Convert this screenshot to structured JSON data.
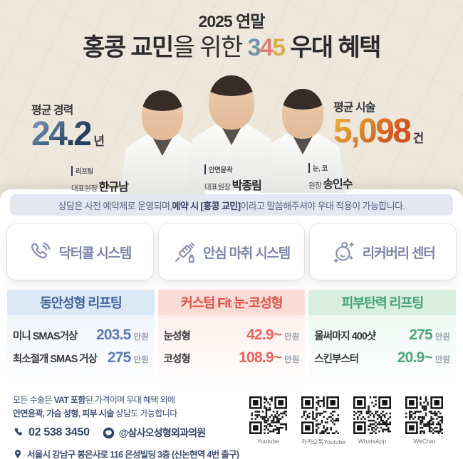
{
  "header": {
    "badge": "2025 연말",
    "title": {
      "bold1": "홍콩 교민",
      "mid": "을 위한 ",
      "d3": "3",
      "d4": "4",
      "d5": "5",
      "bold2": " 우대 혜택"
    }
  },
  "stats": {
    "experience": {
      "label": "평균 경력",
      "value": "24.2",
      "unit": "년"
    },
    "procedures": {
      "label": "평균 시술",
      "value": "5,098",
      "unit": "건"
    }
  },
  "doctors": [
    {
      "specialty": "리프팅",
      "title": "대표원장",
      "name": "한규남"
    },
    {
      "specialty": "안면윤곽",
      "title": "대표원장",
      "name": "박종림"
    },
    {
      "specialty": "눈, 코",
      "title": "원장",
      "name": "송인수"
    }
  ],
  "notice": {
    "pre": "상담은 사전 예약제로 운영되며, ",
    "bold": "예약 시 [홍콩 교민]",
    "post": "이라고 말씀해주셔야 우대 적용이 가능합니다."
  },
  "services": [
    {
      "icon": "phone-call-icon",
      "label": "닥터콜 시스템"
    },
    {
      "icon": "syringe-icon",
      "label": "안심 마취 시스템"
    },
    {
      "icon": "recovery-face-icon",
      "label": "리커버리 센터"
    }
  ],
  "pricing": {
    "columns": [
      {
        "header": "동안성형 리프팅",
        "accent": "#4a6aa8",
        "items": [
          {
            "label": "미니 SMAS거상",
            "value": "203.5",
            "unit": "만원"
          },
          {
            "label": "최소절개 SMAS 거상",
            "value": "275",
            "unit": "만원"
          }
        ]
      },
      {
        "header": "커스텀 Fit 눈·코성형",
        "accent": "#e05a4e",
        "items": [
          {
            "label": "눈성형",
            "value": "42.9~",
            "unit": "만원"
          },
          {
            "label": "코성형",
            "value": "108.9~",
            "unit": "만원"
          }
        ]
      },
      {
        "header": "피부탄력 리프팅",
        "accent": "#4aa878",
        "items": [
          {
            "label": "울써마지 400샷",
            "value": "275",
            "unit": "만원"
          },
          {
            "label": "스킨부스터",
            "value": "20.9~",
            "unit": "만원"
          }
        ]
      }
    ]
  },
  "footer": {
    "vat_note": {
      "pre": "모든 수술은 ",
      "bold": "VAT 포함",
      "post": "된 가격이며 우대 혜택 외에"
    },
    "consult_note": {
      "bold": "안면윤곽, 가슴 성형, 피부 시술",
      "post": " 상담도 가능합니다"
    },
    "phone": "02 538 3450",
    "kakao_handle": "@삼사오성형외과의원",
    "address": "서울시 강남구 봉은사로 116 은성빌딩 3층 (신논현역 4번 출구)",
    "qr_codes": [
      {
        "label": "Youtube"
      },
      {
        "label": "카카오톡Youtube"
      },
      {
        "label": "WhatsApp"
      },
      {
        "label": "WeChat"
      }
    ]
  },
  "colors": {
    "background": "#ede7dc",
    "digit_3": "#6f96a8",
    "digit_4": "#de7e72",
    "digit_5": "#d9ad4f",
    "stat_blue": "#24405f",
    "stat_orange": "#d2531e",
    "blue_accent": "#4a6aa8",
    "red_accent": "#e05a4e",
    "green_accent": "#4aa878",
    "navy": "#33456b"
  }
}
